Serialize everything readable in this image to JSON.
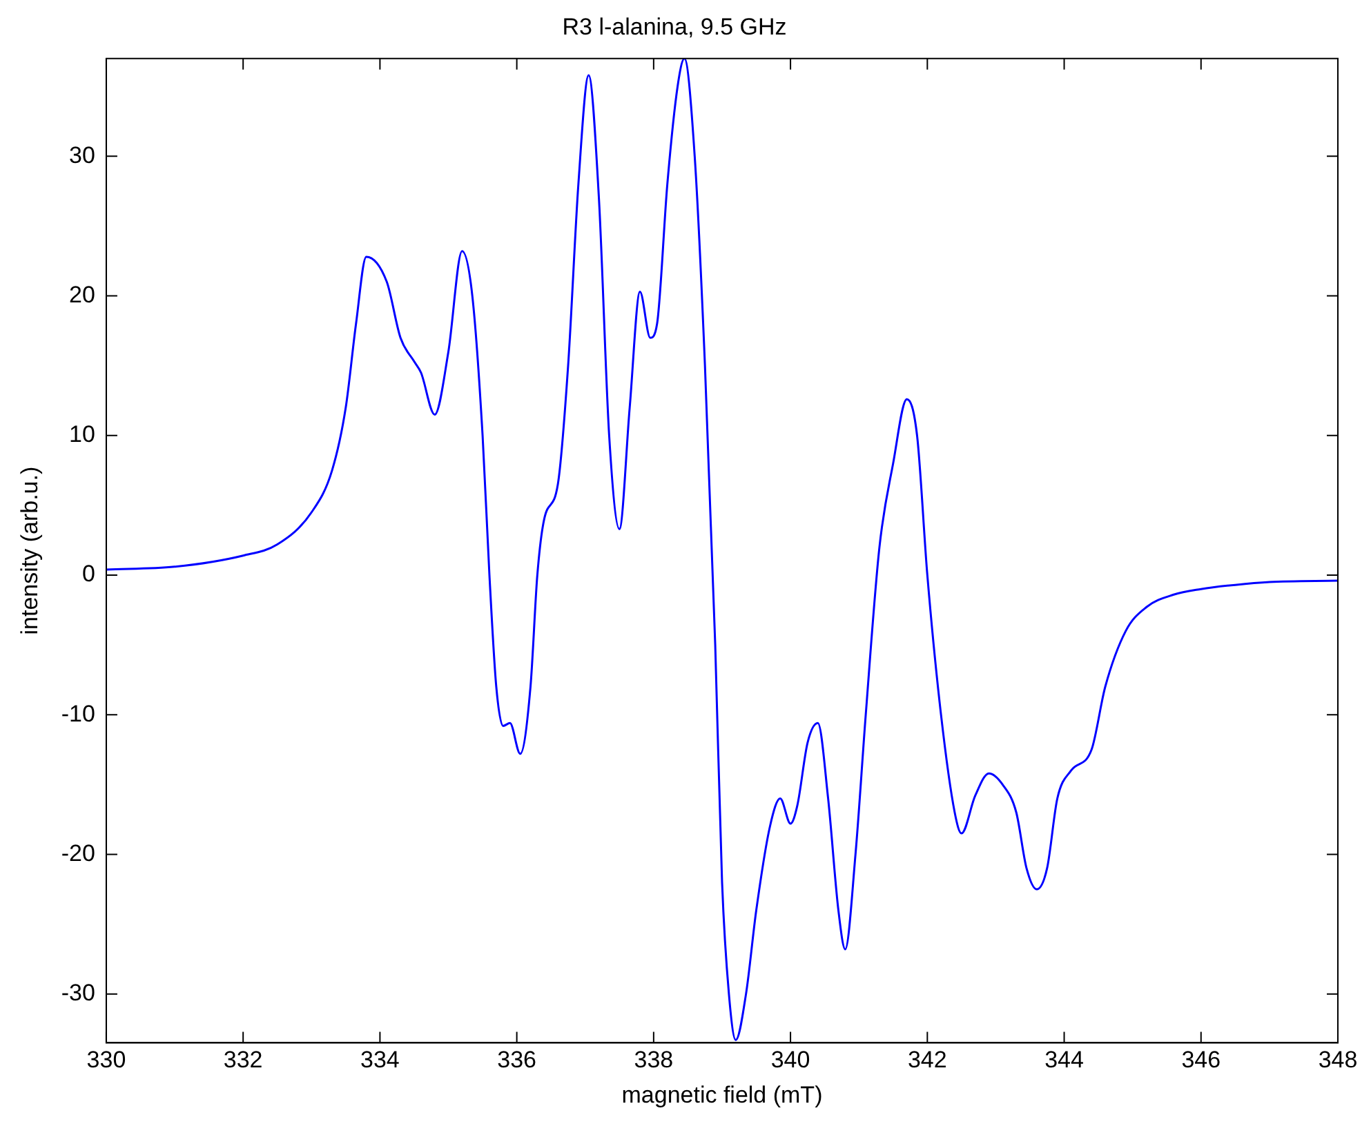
{
  "chart_data": {
    "type": "line",
    "title": "R3 l-alanina, 9.5 GHz",
    "xlabel": "magnetic field (mT)",
    "ylabel": "intensity (arb.u.)",
    "xlim": [
      330,
      348
    ],
    "xticks": [
      330,
      332,
      334,
      336,
      338,
      340,
      342,
      344,
      346,
      348
    ],
    "ylim": [
      -33.5,
      37
    ],
    "yticks": [
      -30,
      -20,
      -10,
      0,
      10,
      20,
      30
    ],
    "grid": false,
    "legend": false,
    "marker": "none",
    "line_style": "solid",
    "series": [
      {
        "color": "#0000ff",
        "x": [
          330,
          331,
          332,
          332.5,
          333,
          333.3,
          333.5,
          333.65,
          333.8,
          334.1,
          334.3,
          334.5,
          334.6,
          334.8,
          335,
          335.2,
          335.35,
          335.5,
          335.6,
          335.7,
          335.8,
          335.9,
          336.05,
          336.2,
          336.3,
          336.4,
          336.6,
          336.75,
          336.9,
          337.05,
          337.2,
          337.35,
          337.5,
          337.65,
          337.8,
          337.95,
          338.05,
          338.2,
          338.35,
          338.45,
          338.6,
          338.75,
          338.9,
          339,
          339.1,
          339.2,
          339.35,
          339.5,
          339.7,
          339.85,
          340,
          340.1,
          340.25,
          340.4,
          340.55,
          340.7,
          340.8,
          340.95,
          341.1,
          341.3,
          341.5,
          341.7,
          341.85,
          342,
          342.2,
          342.4,
          342.5,
          342.7,
          342.9,
          343.1,
          343.3,
          343.45,
          343.6,
          343.75,
          343.9,
          344.1,
          344.4,
          344.6,
          344.9,
          345.2,
          345.6,
          346,
          346.5,
          347,
          348
        ],
        "values": [
          0.4,
          0.6,
          1.4,
          2.2,
          4.5,
          7.5,
          12,
          18,
          22.8,
          21,
          17,
          15.3,
          14.5,
          11.5,
          16,
          23.2,
          20,
          10,
          0,
          -8,
          -10.8,
          -10.6,
          -12.8,
          -8,
          0,
          4,
          6.5,
          15,
          28,
          35.8,
          27,
          10,
          3.3,
          12,
          20.3,
          17,
          18,
          28,
          35,
          37,
          30,
          15,
          -5,
          -22,
          -30,
          -33.3,
          -30,
          -24,
          -18,
          -16,
          -17.8,
          -16.5,
          -12,
          -10.6,
          -16,
          -24,
          -26.8,
          -20,
          -10,
          2,
          8,
          12.6,
          10,
          0,
          -10,
          -17,
          -18.5,
          -15.8,
          -14.2,
          -15,
          -17,
          -21,
          -22.5,
          -21,
          -16,
          -14,
          -12.5,
          -8,
          -4,
          -2.3,
          -1.4,
          -1,
          -0.7,
          -0.5,
          -0.4
        ]
      }
    ]
  }
}
